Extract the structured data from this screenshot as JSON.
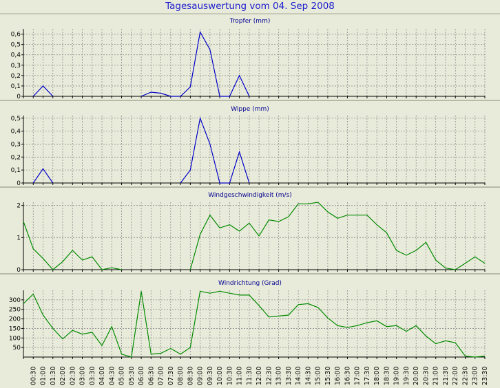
{
  "title": "Tagesauswertung vom 04. Sep 2008",
  "time_labels": [
    "00:30",
    "01:00",
    "01:30",
    "02:00",
    "02:30",
    "03:00",
    "03:30",
    "04:00",
    "04:30",
    "05:00",
    "05:30",
    "06:00",
    "06:30",
    "07:00",
    "07:30",
    "08:00",
    "08:30",
    "09:00",
    "09:30",
    "10:00",
    "10:30",
    "11:00",
    "11:30",
    "12:00",
    "12:30",
    "13:00",
    "13:30",
    "14:00",
    "14:30",
    "15:00",
    "15:30",
    "16:00",
    "16:30",
    "17:00",
    "17:30",
    "18:00",
    "18:30",
    "19:00",
    "19:30",
    "20:00",
    "20:30",
    "21:00",
    "21:30",
    "22:00",
    "22:30",
    "23:00",
    "23:30"
  ],
  "colors": {
    "rain": "#0000c8",
    "wind": "#008a00",
    "grid": "#8c8c8c",
    "background": "#e9ebda",
    "title": "#1d1dcf"
  },
  "chart_data": [
    {
      "type": "line",
      "title": "Tropfer (mm)",
      "x": [
        "00:00",
        "00:30",
        "01:00",
        "01:30",
        "02:00",
        "02:30",
        "03:00",
        "03:30",
        "04:00",
        "04:30",
        "05:00",
        "05:30",
        "06:00",
        "06:30",
        "07:00",
        "07:30",
        "08:00",
        "08:30",
        "09:00",
        "09:30",
        "10:00",
        "10:30",
        "11:00",
        "11:30",
        "12:00",
        "12:30",
        "13:00",
        "13:30",
        "14:00",
        "14:30",
        "15:00",
        "15:30",
        "16:00",
        "16:30",
        "17:00",
        "17:30",
        "18:00",
        "18:30",
        "19:00",
        "19:30",
        "20:00",
        "20:30",
        "21:00",
        "21:30",
        "22:00",
        "22:30",
        "23:00",
        "23:30"
      ],
      "series": [
        {
          "values": [
            null,
            0,
            0.1,
            0,
            null,
            null,
            null,
            null,
            null,
            null,
            null,
            null,
            0,
            0.04,
            0.03,
            0,
            0,
            0.09,
            0.62,
            0.45,
            0,
            0,
            0.2,
            0,
            null,
            null,
            null,
            null,
            null,
            null,
            null,
            null,
            null,
            null,
            null,
            null,
            null,
            null,
            null,
            null,
            null,
            null,
            null,
            null,
            null,
            null,
            null,
            null
          ]
        }
      ],
      "ylim": [
        0,
        0.65
      ],
      "yticks": [
        "0",
        "0,1",
        "0,2",
        "0,3",
        "0,4",
        "0,5",
        "0,6"
      ],
      "ytick_values": [
        0,
        0.1,
        0.2,
        0.3,
        0.4,
        0.5,
        0.6
      ],
      "grid": true
    },
    {
      "type": "line",
      "title": "Wippe (mm)",
      "x": [
        "00:00",
        "00:30",
        "01:00",
        "01:30",
        "02:00",
        "02:30",
        "03:00",
        "03:30",
        "04:00",
        "04:30",
        "05:00",
        "05:30",
        "06:00",
        "06:30",
        "07:00",
        "07:30",
        "08:00",
        "08:30",
        "09:00",
        "09:30",
        "10:00",
        "10:30",
        "11:00",
        "11:30",
        "12:00",
        "12:30",
        "13:00",
        "13:30",
        "14:00",
        "14:30",
        "15:00",
        "15:30",
        "16:00",
        "16:30",
        "17:00",
        "17:30",
        "18:00",
        "18:30",
        "19:00",
        "19:30",
        "20:00",
        "20:30",
        "21:00",
        "21:30",
        "22:00",
        "22:30",
        "23:00",
        "23:30"
      ],
      "series": [
        {
          "values": [
            null,
            0,
            0.11,
            0,
            null,
            null,
            null,
            null,
            null,
            null,
            null,
            null,
            null,
            null,
            null,
            null,
            0,
            0.1,
            0.5,
            0.3,
            0,
            0,
            0.24,
            0,
            null,
            null,
            null,
            null,
            null,
            null,
            null,
            null,
            null,
            null,
            null,
            null,
            null,
            null,
            null,
            null,
            null,
            null,
            null,
            null,
            null,
            null,
            null,
            null
          ]
        }
      ],
      "ylim": [
        0,
        0.52
      ],
      "yticks": [
        "0",
        "0,1",
        "0,2",
        "0,3",
        "0,4",
        "0,5"
      ],
      "ytick_values": [
        0,
        0.1,
        0.2,
        0.3,
        0.4,
        0.5
      ],
      "grid": true
    },
    {
      "type": "line",
      "title": "Windgeschwindigkeit (m/s)",
      "x": [
        "00:00",
        "00:30",
        "01:00",
        "01:30",
        "02:00",
        "02:30",
        "03:00",
        "03:30",
        "04:00",
        "04:30",
        "05:00",
        "05:30",
        "06:00",
        "06:30",
        "07:00",
        "07:30",
        "08:00",
        "08:30",
        "09:00",
        "09:30",
        "10:00",
        "10:30",
        "11:00",
        "11:30",
        "12:00",
        "12:30",
        "13:00",
        "13:30",
        "14:00",
        "14:30",
        "15:00",
        "15:30",
        "16:00",
        "16:30",
        "17:00",
        "17:30",
        "18:00",
        "18:30",
        "19:00",
        "19:30",
        "20:00",
        "20:30",
        "21:00",
        "21:30",
        "22:00",
        "22:30",
        "23:00",
        "23:30"
      ],
      "series": [
        {
          "values": [
            1.5,
            0.65,
            0.35,
            0,
            0.25,
            0.6,
            0.3,
            0.4,
            0,
            0.06,
            0,
            null,
            null,
            null,
            null,
            null,
            null,
            0,
            1.1,
            1.7,
            1.3,
            1.4,
            1.2,
            1.45,
            1.05,
            1.55,
            1.5,
            1.65,
            2.05,
            2.05,
            2.1,
            1.8,
            1.6,
            1.7,
            1.7,
            1.7,
            1.4,
            1.15,
            0.6,
            0.45,
            0.6,
            0.85,
            0.3,
            0.05,
            0,
            0.2,
            0.4,
            0.2
          ]
        }
      ],
      "ylim": [
        0,
        2.1
      ],
      "yticks": [
        "0",
        "1",
        "2"
      ],
      "ytick_values": [
        0,
        1,
        2
      ],
      "grid": true
    },
    {
      "type": "line",
      "title": "Windrichtung (Grad)",
      "x": [
        "00:00",
        "00:30",
        "01:00",
        "01:30",
        "02:00",
        "02:30",
        "03:00",
        "03:30",
        "04:00",
        "04:30",
        "05:00",
        "05:30",
        "06:00",
        "06:30",
        "07:00",
        "07:30",
        "08:00",
        "08:30",
        "09:00",
        "09:30",
        "10:00",
        "10:30",
        "11:00",
        "11:30",
        "12:00",
        "12:30",
        "13:00",
        "13:30",
        "14:00",
        "14:30",
        "15:00",
        "15:30",
        "16:00",
        "16:30",
        "17:00",
        "17:30",
        "18:00",
        "18:30",
        "19:00",
        "19:30",
        "20:00",
        "20:30",
        "21:00",
        "21:30",
        "22:00",
        "22:30",
        "23:00",
        "23:30"
      ],
      "series": [
        {
          "values": [
            280,
            330,
            220,
            150,
            95,
            140,
            120,
            130,
            60,
            160,
            15,
            0,
            345,
            15,
            20,
            45,
            15,
            50,
            345,
            335,
            345,
            335,
            325,
            325,
            270,
            210,
            215,
            220,
            275,
            280,
            260,
            205,
            165,
            155,
            165,
            180,
            190,
            160,
            165,
            135,
            165,
            110,
            70,
            85,
            75,
            5,
            0,
            5
          ]
        }
      ],
      "ylim": [
        0,
        350
      ],
      "yticks": [
        "50",
        "100",
        "150",
        "200",
        "250",
        "300"
      ],
      "ytick_values": [
        50,
        100,
        150,
        200,
        250,
        300
      ],
      "grid": true
    }
  ]
}
